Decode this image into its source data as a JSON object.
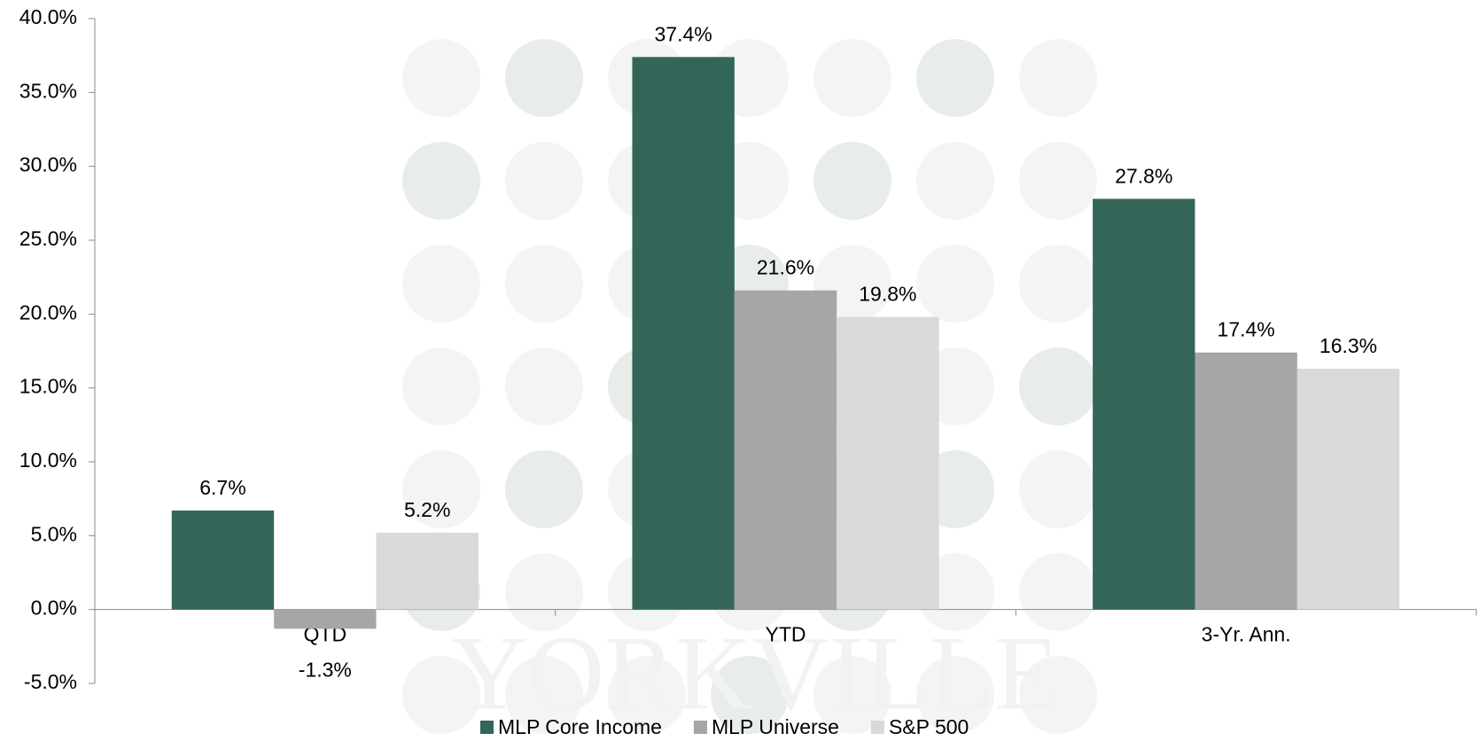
{
  "chart_data": {
    "type": "bar",
    "watermark": "YORKVILLE",
    "categories": [
      "QTD",
      "YTD",
      "3-Yr. Ann."
    ],
    "series": [
      {
        "name": "MLP Core Income",
        "color": "#336659",
        "values": [
          6.7,
          37.4,
          27.8
        ],
        "value_labels": [
          "6.7%",
          "37.4%",
          "27.8%"
        ]
      },
      {
        "name": "MLP Universe",
        "color": "#a6a6a6",
        "values": [
          -1.3,
          21.6,
          17.4
        ],
        "value_labels": [
          "-1.3%",
          "21.6%",
          "17.4%"
        ]
      },
      {
        "name": "S&P 500",
        "color": "#d9d9d9",
        "values": [
          5.2,
          19.8,
          16.3
        ],
        "value_labels": [
          "5.2%",
          "19.8%",
          "16.3%"
        ]
      }
    ],
    "ylim": [
      -5,
      40
    ],
    "yticks": [
      {
        "value": -5,
        "label": "-5.0%"
      },
      {
        "value": 0,
        "label": "0.0%"
      },
      {
        "value": 5,
        "label": "5.0%"
      },
      {
        "value": 10,
        "label": "10.0%"
      },
      {
        "value": 15,
        "label": "15.0%"
      },
      {
        "value": 20,
        "label": "20.0%"
      },
      {
        "value": 25,
        "label": "25.0%"
      },
      {
        "value": 30,
        "label": "30.0%"
      },
      {
        "value": 35,
        "label": "35.0%"
      },
      {
        "value": 40,
        "label": "40.0%"
      }
    ],
    "legend": "bottom",
    "grid": false
  }
}
